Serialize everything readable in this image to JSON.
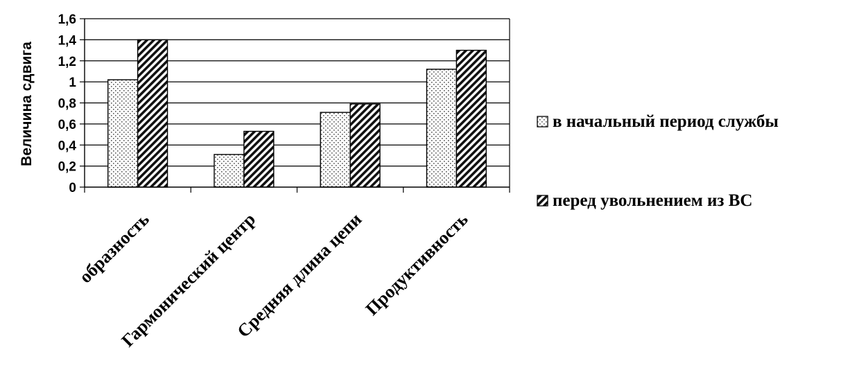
{
  "chart_data": {
    "type": "bar",
    "categories": [
      "образность",
      "Гармонический центр",
      "Средняя длина цепи",
      "Продуктивность"
    ],
    "series": [
      {
        "name": "в начальный период службы",
        "values": [
          1.02,
          0.31,
          0.71,
          1.12
        ],
        "pattern": "dots"
      },
      {
        "name": "перед увольнением из ВС",
        "values": [
          1.4,
          0.53,
          0.79,
          1.3
        ],
        "pattern": "diagonal-hatch"
      }
    ],
    "xlabel": "",
    "ylabel": "Величина сдвига",
    "ylim": [
      0,
      1.6
    ],
    "yticks": [
      "0",
      "0,2",
      "0,4",
      "0,6",
      "0,8",
      "1",
      "1,2",
      "1,4",
      "1,6"
    ],
    "grid": true,
    "legend_position": "right"
  }
}
